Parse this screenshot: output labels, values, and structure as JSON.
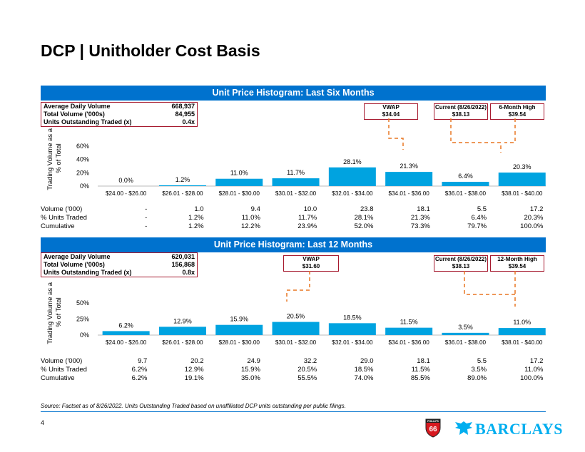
{
  "page": {
    "title": "DCP | Unitholder Cost Basis",
    "page_number": "4",
    "source": "Source: Factset as of 8/26/2022. Units Outstanding Traded based on unaffiliated DCP units outstanding per public filings.",
    "brand": "BARCLAYS",
    "logo_text": "66",
    "logo_top_text": "PHILLIPS"
  },
  "colors": {
    "accent": "#0072CE",
    "bar": "#00A3E0",
    "box_border": "#A6192E",
    "dash": "#E87722"
  },
  "chart_data": [
    {
      "type": "bar",
      "title": "Unit Price Histogram: Last Six Months",
      "ylabel": "Trading Volume as a % of Total",
      "ylim": [
        0,
        60
      ],
      "yticks": [
        "0%",
        "20%",
        "40%",
        "60%"
      ],
      "categories": [
        "$24.00 - $26.00",
        "$26.01 - $28.00",
        "$28.01 - $30.00",
        "$30.01 - $32.00",
        "$32.01 - $34.00",
        "$34.01 - $36.00",
        "$36.01 - $38.00",
        "$38.01 - $40.00"
      ],
      "values": [
        0.0,
        1.2,
        11.0,
        11.7,
        28.1,
        21.3,
        6.4,
        20.3
      ],
      "labels": [
        "0.0%",
        "1.2%",
        "11.0%",
        "11.7%",
        "28.1%",
        "21.3%",
        "6.4%",
        "20.3%"
      ],
      "stats": [
        {
          "label": "Average Daily Volume",
          "value": "668,937"
        },
        {
          "label": "Total Volume ('000s)",
          "value": "84,955"
        },
        {
          "label": "Units Outstanding Traded (x)",
          "value": "0.4x"
        }
      ],
      "callouts": [
        {
          "title": "VWAP",
          "value": "$34.04"
        },
        {
          "title": "Current (8/26/2022)",
          "value": "$38.13"
        },
        {
          "title": "6-Month High",
          "value": "$39.54"
        }
      ],
      "table": [
        {
          "label": "Volume ('000)",
          "values": [
            "-",
            "1.0",
            "9.4",
            "10.0",
            "23.8",
            "18.1",
            "5.5",
            "17.2"
          ]
        },
        {
          "label": "% Units Traded",
          "values": [
            "-",
            "1.2%",
            "11.0%",
            "11.7%",
            "28.1%",
            "21.3%",
            "6.4%",
            "20.3%"
          ]
        },
        {
          "label": "Cumulative",
          "values": [
            "-",
            "1.2%",
            "12.2%",
            "23.9%",
            "52.0%",
            "73.3%",
            "79.7%",
            "100.0%"
          ]
        }
      ]
    },
    {
      "type": "bar",
      "title": "Unit Price Histogram: Last 12 Months",
      "ylabel": "Trading Volume as a % of Total",
      "ylim": [
        0,
        60
      ],
      "yticks": [
        "0%",
        "25%",
        "50%"
      ],
      "categories": [
        "$24.00 - $26.00",
        "$26.01 - $28.00",
        "$28.01 - $30.00",
        "$30.01 - $32.00",
        "$32.01 - $34.00",
        "$34.01 - $36.00",
        "$36.01 - $38.00",
        "$38.01 - $40.00"
      ],
      "values": [
        6.2,
        12.9,
        15.9,
        20.5,
        18.5,
        11.5,
        3.5,
        11.0
      ],
      "labels": [
        "6.2%",
        "12.9%",
        "15.9%",
        "20.5%",
        "18.5%",
        "11.5%",
        "3.5%",
        "11.0%"
      ],
      "stats": [
        {
          "label": "Average Daily Volume",
          "value": "620,031"
        },
        {
          "label": "Total Volume ('000s)",
          "value": "156,868"
        },
        {
          "label": "Units Outstanding Traded (x)",
          "value": "0.8x"
        }
      ],
      "callouts": [
        {
          "title": "VWAP",
          "value": "$31.60"
        },
        {
          "title": "Current (8/26/2022)",
          "value": "$38.13"
        },
        {
          "title": "12-Month High",
          "value": "$39.54"
        }
      ],
      "table": [
        {
          "label": "Volume ('000)",
          "values": [
            "9.7",
            "20.2",
            "24.9",
            "32.2",
            "29.0",
            "18.1",
            "5.5",
            "17.2"
          ]
        },
        {
          "label": "% Units Traded",
          "values": [
            "6.2%",
            "12.9%",
            "15.9%",
            "20.5%",
            "18.5%",
            "11.5%",
            "3.5%",
            "11.0%"
          ]
        },
        {
          "label": "Cumulative",
          "values": [
            "6.2%",
            "19.1%",
            "35.0%",
            "55.5%",
            "74.0%",
            "85.5%",
            "89.0%",
            "100.0%"
          ]
        }
      ]
    }
  ]
}
